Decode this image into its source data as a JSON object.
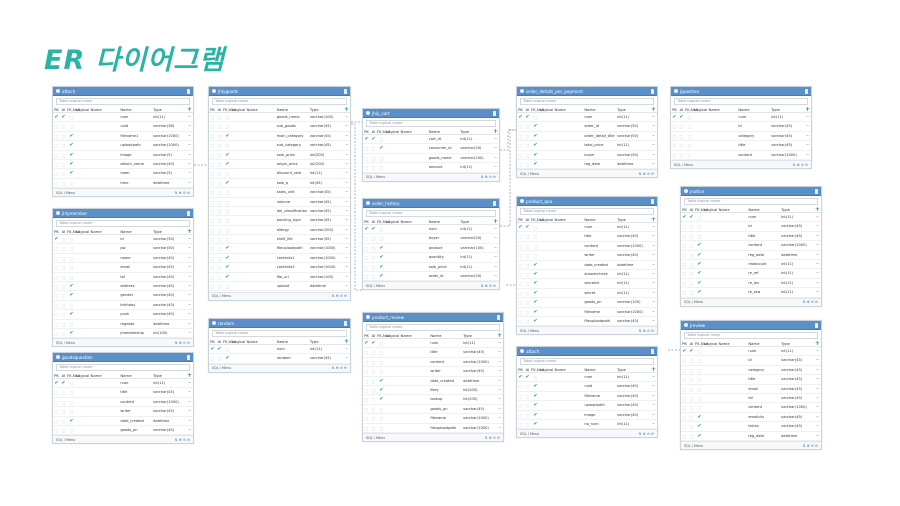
{
  "title": "ER 다이어그램",
  "ui": {
    "logical_placeholder": "Table logical name",
    "col_pk": "PK",
    "col_ai": "AI",
    "col_fk": "FK,Null",
    "col_logical": "Logical Name",
    "col_name": "Name",
    "col_type": "Type",
    "footer": "SQL / Menu",
    "footer_tools": "⇅ ⊕ ⚙ ⊖"
  },
  "tables": [
    {
      "name": "attach",
      "rows": [
        {
          "name": "num",
          "type": "int(11)",
          "pk": true,
          "ai": true,
          "fk": false
        },
        {
          "name": "uuid",
          "type": "varchar(36)",
          "pk": false,
          "ai": false,
          "fk": false
        },
        {
          "name": "filename1",
          "type": "varchar(1000)",
          "pk": false,
          "ai": false,
          "fk": true
        },
        {
          "name": "uploadpath",
          "type": "varchar(1000)",
          "pk": false,
          "ai": false,
          "fk": true
        },
        {
          "name": "image",
          "type": "varchar(5)",
          "pk": false,
          "ai": false,
          "fk": true
        },
        {
          "name": "attach_name",
          "type": "varchar(45)",
          "pk": false,
          "ai": false,
          "fk": true
        },
        {
          "name": "mom",
          "type": "varchar(5)",
          "pk": false,
          "ai": false,
          "fk": true
        },
        {
          "name": "time",
          "type": "datetime",
          "pk": false,
          "ai": false,
          "fk": false
        }
      ]
    },
    {
      "name": "jhlymember",
      "rows": [
        {
          "name": "id",
          "type": "varchar(50)",
          "pk": true,
          "ai": false,
          "fk": false
        },
        {
          "name": "pw",
          "type": "varchar(50)",
          "pk": false,
          "ai": false,
          "fk": false
        },
        {
          "name": "name",
          "type": "varchar(45)",
          "pk": false,
          "ai": false,
          "fk": false
        },
        {
          "name": "email",
          "type": "varchar(45)",
          "pk": false,
          "ai": false,
          "fk": false
        },
        {
          "name": "tel",
          "type": "varchar(45)",
          "pk": false,
          "ai": false,
          "fk": false
        },
        {
          "name": "address",
          "type": "varchar(45)",
          "pk": false,
          "ai": false,
          "fk": true
        },
        {
          "name": "gender",
          "type": "varchar(45)",
          "pk": false,
          "ai": false,
          "fk": true
        },
        {
          "name": "birthday",
          "type": "varchar(45)",
          "pk": false,
          "ai": false,
          "fk": false
        },
        {
          "name": "push",
          "type": "varchar(45)",
          "pk": false,
          "ai": false,
          "fk": true
        },
        {
          "name": "regdate",
          "type": "datetime",
          "pk": false,
          "ai": false,
          "fk": false
        },
        {
          "name": "jmembership",
          "type": "int(100)",
          "pk": false,
          "ai": false,
          "fk": true
        }
      ]
    },
    {
      "name": "goodsquestion",
      "rows": [
        {
          "name": "num",
          "type": "int(11)",
          "pk": true,
          "ai": true,
          "fk": false
        },
        {
          "name": "title",
          "type": "varchar(45)",
          "pk": false,
          "ai": false,
          "fk": false
        },
        {
          "name": "content",
          "type": "varchar(1000)",
          "pk": false,
          "ai": false,
          "fk": false
        },
        {
          "name": "writer",
          "type": "varchar(45)",
          "pk": false,
          "ai": false,
          "fk": false
        },
        {
          "name": "date_created",
          "type": "datetime",
          "pk": false,
          "ai": false,
          "fk": true
        },
        {
          "name": "goods_pn",
          "type": "varchar(45)",
          "pk": false,
          "ai": false,
          "fk": false
        }
      ]
    },
    {
      "name": "jhlygoods",
      "rows": [
        {
          "name": "goods_name",
          "type": "varchar(100)",
          "pk": false,
          "ai": false,
          "fk": false
        },
        {
          "name": "sub_goods",
          "type": "varchar(45)",
          "pk": false,
          "ai": false,
          "fk": false
        },
        {
          "name": "main_category",
          "type": "varchar(45)",
          "pk": false,
          "ai": false,
          "fk": true
        },
        {
          "name": "sub_category",
          "type": "varchar(45)",
          "pk": false,
          "ai": false,
          "fk": false
        },
        {
          "name": "sale_price",
          "type": "int(200)",
          "pk": false,
          "ai": false,
          "fk": true
        },
        {
          "name": "origin_price",
          "type": "int(200)",
          "pk": false,
          "ai": false,
          "fk": true
        },
        {
          "name": "discount_rate",
          "type": "int(11)",
          "pk": false,
          "ai": false,
          "fk": false
        },
        {
          "name": "sale_q",
          "type": "int(45)",
          "pk": false,
          "ai": false,
          "fk": true
        },
        {
          "name": "sales_unit",
          "type": "varchar(45)",
          "pk": false,
          "ai": false,
          "fk": false
        },
        {
          "name": "volume",
          "type": "varchar(45)",
          "pk": false,
          "ai": false,
          "fk": false
        },
        {
          "name": "del_classification",
          "type": "varchar(45)",
          "pk": false,
          "ai": false,
          "fk": false
        },
        {
          "name": "packing_type",
          "type": "varchar(45)",
          "pk": false,
          "ai": false,
          "fk": false
        },
        {
          "name": "allergy",
          "type": "varchar(200)",
          "pk": false,
          "ai": false,
          "fk": false
        },
        {
          "name": "shelf_life",
          "type": "varchar(45)",
          "pk": false,
          "ai": false,
          "fk": false
        },
        {
          "name": "fileuploadpath",
          "type": "varchar(1000)",
          "pk": false,
          "ai": false,
          "fk": true
        },
        {
          "name": "contents1",
          "type": "varchar(1000)",
          "pk": false,
          "ai": false,
          "fk": true
        },
        {
          "name": "contents2",
          "type": "varchar(1000)",
          "pk": false,
          "ai": false,
          "fk": true
        },
        {
          "name": "file_url",
          "type": "varchar(100)",
          "pk": false,
          "ai": false,
          "fk": true
        },
        {
          "name": "upload",
          "type": "datetime",
          "pk": false,
          "ai": false,
          "fk": false
        }
      ]
    },
    {
      "name": "random",
      "rows": [
        {
          "name": "num",
          "type": "int(11)",
          "pk": true,
          "ai": true,
          "fk": false
        },
        {
          "name": "random",
          "type": "varchar(45)",
          "pk": false,
          "ai": false,
          "fk": true
        }
      ]
    },
    {
      "name": "jhly_cart",
      "rows": [
        {
          "name": "cart_id",
          "type": "int(11)",
          "pk": true,
          "ai": true,
          "fk": false
        },
        {
          "name": "consumer_id",
          "type": "varchar(50)",
          "pk": false,
          "ai": false,
          "fk": true
        },
        {
          "name": "goods_name",
          "type": "varchar(100)",
          "pk": false,
          "ai": false,
          "fk": false
        },
        {
          "name": "amount",
          "type": "int(11)",
          "pk": false,
          "ai": false,
          "fk": false
        }
      ]
    },
    {
      "name": "order_history",
      "rows": [
        {
          "name": "num",
          "type": "int(11)",
          "pk": true,
          "ai": true,
          "fk": false
        },
        {
          "name": "buyer",
          "type": "varchar(50)",
          "pk": false,
          "ai": false,
          "fk": false
        },
        {
          "name": "product",
          "type": "varchar(100)",
          "pk": false,
          "ai": false,
          "fk": true
        },
        {
          "name": "quantity",
          "type": "int(11)",
          "pk": false,
          "ai": false,
          "fk": true
        },
        {
          "name": "sale_price",
          "type": "int(11)",
          "pk": false,
          "ai": false,
          "fk": true
        },
        {
          "name": "order_id",
          "type": "varchar(50)",
          "pk": false,
          "ai": false,
          "fk": true
        }
      ]
    },
    {
      "name": "product_review",
      "rows": [
        {
          "name": "num",
          "type": "int(11)",
          "pk": true,
          "ai": true,
          "fk": false
        },
        {
          "name": "title",
          "type": "varchar(45)",
          "pk": false,
          "ai": false,
          "fk": false
        },
        {
          "name": "content",
          "type": "varchar(1000)",
          "pk": false,
          "ai": false,
          "fk": false
        },
        {
          "name": "writer",
          "type": "varchar(45)",
          "pk": false,
          "ai": false,
          "fk": false
        },
        {
          "name": "date_created",
          "type": "datetime",
          "pk": false,
          "ai": false,
          "fk": true
        },
        {
          "name": "likey",
          "type": "int(200)",
          "pk": false,
          "ai": false,
          "fk": true
        },
        {
          "name": "lookup",
          "type": "int(200)",
          "pk": false,
          "ai": false,
          "fk": true
        },
        {
          "name": "goods_pn",
          "type": "varchar(45)",
          "pk": false,
          "ai": false,
          "fk": false
        },
        {
          "name": "filename",
          "type": "varchar(1000)",
          "pk": false,
          "ai": false,
          "fk": false
        },
        {
          "name": "fileuploadpath",
          "type": "varchar(1000)",
          "pk": false,
          "ai": false,
          "fk": false
        }
      ]
    },
    {
      "name": "order_details_per_payment",
      "rows": [
        {
          "name": "num",
          "type": "int(11)",
          "pk": true,
          "ai": true,
          "fk": false
        },
        {
          "name": "order_id",
          "type": "varchar(50)",
          "pk": false,
          "ai": false,
          "fk": true
        },
        {
          "name": "order_detail_title",
          "type": "varchar(50)",
          "pk": false,
          "ai": false,
          "fk": true
        },
        {
          "name": "total_price",
          "type": "int(11)",
          "pk": false,
          "ai": false,
          "fk": true
        },
        {
          "name": "buyer",
          "type": "varchar(50)",
          "pk": false,
          "ai": false,
          "fk": true
        },
        {
          "name": "reg_date",
          "type": "datetime",
          "pk": false,
          "ai": false,
          "fk": true
        }
      ]
    },
    {
      "name": "product_qna",
      "rows": [
        {
          "name": "num",
          "type": "int(11)",
          "pk": true,
          "ai": true,
          "fk": false
        },
        {
          "name": "title",
          "type": "varchar(45)",
          "pk": false,
          "ai": false,
          "fk": false
        },
        {
          "name": "content",
          "type": "varchar(1000)",
          "pk": false,
          "ai": false,
          "fk": false
        },
        {
          "name": "writer",
          "type": "varchar(45)",
          "pk": false,
          "ai": false,
          "fk": false
        },
        {
          "name": "date_created",
          "type": "datetime",
          "pk": false,
          "ai": false,
          "fk": true
        },
        {
          "name": "answercheck",
          "type": "int(11)",
          "pk": false,
          "ai": false,
          "fk": true
        },
        {
          "name": "secretck",
          "type": "int(11)",
          "pk": false,
          "ai": false,
          "fk": true
        },
        {
          "name": "secret",
          "type": "int(11)",
          "pk": false,
          "ai": false,
          "fk": true
        },
        {
          "name": "goods_pn",
          "type": "varchar(100)",
          "pk": false,
          "ai": false,
          "fk": true
        },
        {
          "name": "filename",
          "type": "varchar(1000)",
          "pk": false,
          "ai": false,
          "fk": true
        },
        {
          "name": "fileuploadpath",
          "type": "varchar(45)",
          "pk": false,
          "ai": false,
          "fk": true
        }
      ]
    },
    {
      "name": "attach",
      "rows": [
        {
          "name": "num",
          "type": "int(11)",
          "pk": true,
          "ai": true,
          "fk": false
        },
        {
          "name": "uuid",
          "type": "varchar(45)",
          "pk": false,
          "ai": false,
          "fk": true
        },
        {
          "name": "filename",
          "type": "varchar(45)",
          "pk": false,
          "ai": false,
          "fk": true
        },
        {
          "name": "uploadpath",
          "type": "varchar(45)",
          "pk": false,
          "ai": false,
          "fk": true
        },
        {
          "name": "image",
          "type": "varchar(45)",
          "pk": false,
          "ai": false,
          "fk": true
        },
        {
          "name": "no_num",
          "type": "int(11)",
          "pk": false,
          "ai": false,
          "fk": true
        }
      ]
    },
    {
      "name": "jquestion",
      "rows": [
        {
          "name": "num",
          "type": "int(11)",
          "pk": true,
          "ai": true,
          "fk": false
        },
        {
          "name": "id",
          "type": "varchar(45)",
          "pk": false,
          "ai": false,
          "fk": false
        },
        {
          "name": "category",
          "type": "varchar(45)",
          "pk": false,
          "ai": false,
          "fk": false
        },
        {
          "name": "title",
          "type": "varchar(45)",
          "pk": false,
          "ai": false,
          "fk": false
        },
        {
          "name": "content",
          "type": "varchar(1000)",
          "pk": false,
          "ai": false,
          "fk": false
        }
      ]
    },
    {
      "name": "jnotice",
      "rows": [
        {
          "name": "num",
          "type": "int(11)",
          "pk": true,
          "ai": true,
          "fk": false
        },
        {
          "name": "id",
          "type": "varchar(45)",
          "pk": false,
          "ai": false,
          "fk": false
        },
        {
          "name": "title",
          "type": "varchar(45)",
          "pk": false,
          "ai": false,
          "fk": false
        },
        {
          "name": "content",
          "type": "varchar(1000)",
          "pk": false,
          "ai": false,
          "fk": true
        },
        {
          "name": "reg_date",
          "type": "datetime",
          "pk": false,
          "ai": false,
          "fk": true
        },
        {
          "name": "readcount",
          "type": "int(11)",
          "pk": false,
          "ai": false,
          "fk": true
        },
        {
          "name": "re_ref",
          "type": "int(11)",
          "pk": false,
          "ai": false,
          "fk": true
        },
        {
          "name": "re_lev",
          "type": "int(11)",
          "pk": false,
          "ai": false,
          "fk": true
        },
        {
          "name": "re_seq",
          "type": "int(11)",
          "pk": false,
          "ai": false,
          "fk": true
        }
      ]
    },
    {
      "name": "jreview",
      "rows": [
        {
          "name": "num",
          "type": "int(11)",
          "pk": true,
          "ai": true,
          "fk": false
        },
        {
          "name": "id",
          "type": "varchar(45)",
          "pk": false,
          "ai": false,
          "fk": false
        },
        {
          "name": "category",
          "type": "varchar(45)",
          "pk": false,
          "ai": false,
          "fk": false
        },
        {
          "name": "title",
          "type": "varchar(45)",
          "pk": false,
          "ai": false,
          "fk": false
        },
        {
          "name": "email",
          "type": "varchar(45)",
          "pk": false,
          "ai": false,
          "fk": false
        },
        {
          "name": "tel",
          "type": "varchar(45)",
          "pk": false,
          "ai": false,
          "fk": false
        },
        {
          "name": "content",
          "type": "varchar(1000)",
          "pk": false,
          "ai": false,
          "fk": false
        },
        {
          "name": "emailcks",
          "type": "varchar(45)",
          "pk": false,
          "ai": false,
          "fk": true
        },
        {
          "name": "telcks",
          "type": "varchar(45)",
          "pk": false,
          "ai": false,
          "fk": true
        },
        {
          "name": "reg_date",
          "type": "datetime",
          "pk": false,
          "ai": false,
          "fk": true
        }
      ]
    }
  ]
}
